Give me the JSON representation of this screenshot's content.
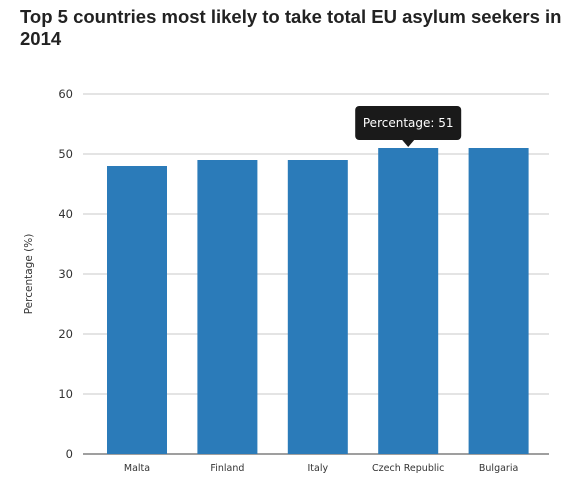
{
  "chart_data": {
    "type": "bar",
    "title": "Top 5 countries most likely to take total EU asylum seekers in 2014",
    "xlabel": "",
    "ylabel": "Percentage (%)",
    "ylim": [
      0,
      60
    ],
    "yticks": [
      0,
      10,
      20,
      30,
      40,
      50,
      60
    ],
    "categories": [
      "Malta",
      "Finland",
      "Italy",
      "Czech Republic",
      "Bulgaria"
    ],
    "values": [
      48,
      49,
      49,
      51,
      51
    ],
    "bar_color": "#2b7bb9",
    "grid": true,
    "legend": "none",
    "tooltip": {
      "label": "Percentage: 51",
      "category": "Czech Republic",
      "background": "#1a1a1a"
    }
  }
}
